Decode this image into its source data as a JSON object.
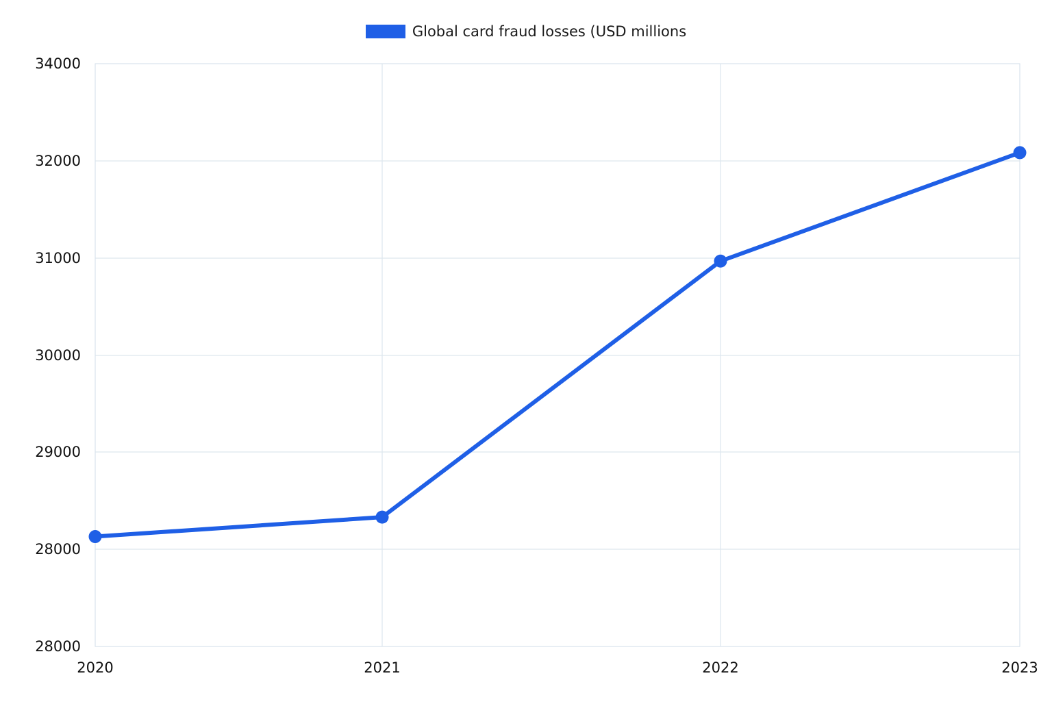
{
  "chart_data": {
    "type": "line",
    "title": "",
    "xlabel": "",
    "ylabel": "",
    "legend_position": "top-center",
    "grid": true,
    "categories": [
      "2020",
      "2021",
      "2022",
      "2023"
    ],
    "series": [
      {
        "name": "Global card fraud losses (USD millions",
        "color": "#1f5fe6",
        "values": [
          28130,
          28330,
          30970,
          32170
        ]
      }
    ],
    "y_ticks": [
      "34000",
      "32000",
      "31000",
      "30000",
      "29000",
      "28000",
      "28000"
    ],
    "grid_color": "#dde6ee"
  }
}
